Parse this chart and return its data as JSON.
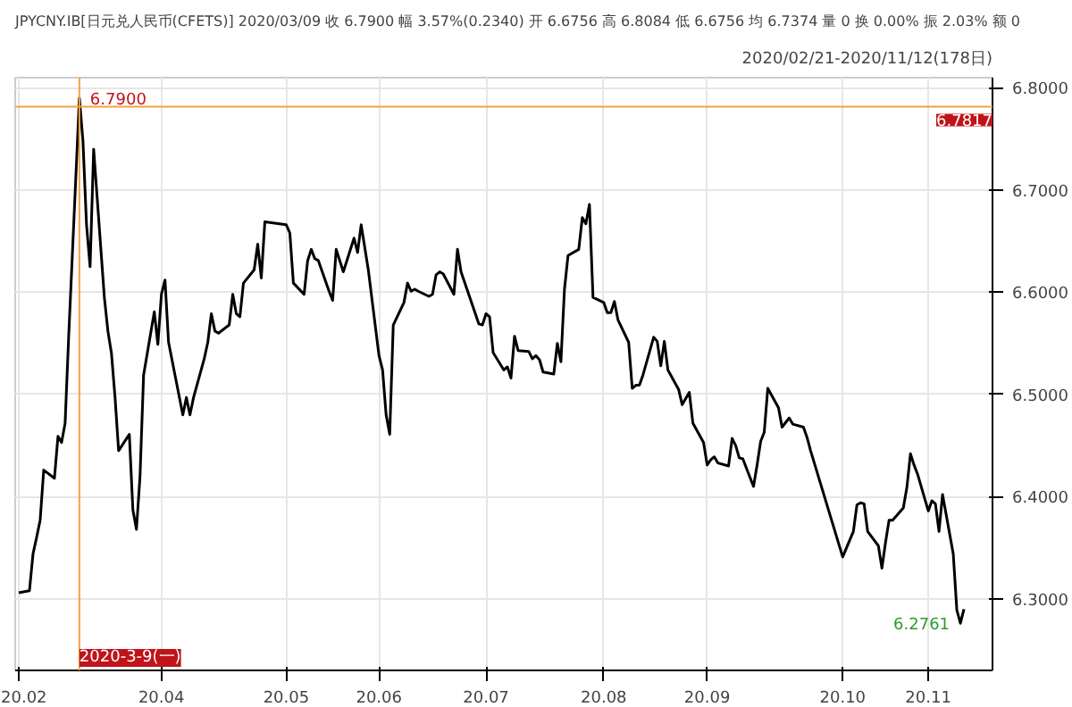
{
  "chart_data": {
    "type": "line",
    "title": "JPYCNY.IB[日元兑人民币(CFETS)]  2020/03/09  收 6.7900  幅 3.57%(0.2340)  开 6.6756  高 6.8084  低 6.6756  均 6.7374  量 0  换 0.00%  振 2.03%  额 0",
    "subtitle": "2020/02/21-2020/11/12(178日)",
    "x": [
      "2020-02-21",
      "2020-02-24",
      "2020-02-25",
      "2020-02-26",
      "2020-02-27",
      "2020-02-28",
      "2020-03-02",
      "2020-03-03",
      "2020-03-04",
      "2020-03-05",
      "2020-03-06",
      "2020-03-09",
      "2020-03-10",
      "2020-03-11",
      "2020-03-12",
      "2020-03-13",
      "2020-03-16",
      "2020-03-17",
      "2020-03-18",
      "2020-03-19",
      "2020-03-20",
      "2020-03-23",
      "2020-03-24",
      "2020-03-25",
      "2020-03-26",
      "2020-03-27",
      "2020-03-30",
      "2020-03-31",
      "2020-04-01",
      "2020-04-02",
      "2020-04-03",
      "2020-04-07",
      "2020-04-08",
      "2020-04-09",
      "2020-04-10",
      "2020-04-13",
      "2020-04-14",
      "2020-04-15",
      "2020-04-16",
      "2020-04-17",
      "2020-04-20",
      "2020-04-21",
      "2020-04-22",
      "2020-04-23",
      "2020-04-24",
      "2020-04-27",
      "2020-04-28",
      "2020-04-29",
      "2020-04-30",
      "2020-05-06",
      "2020-05-07",
      "2020-05-08",
      "2020-05-11",
      "2020-05-12",
      "2020-05-13",
      "2020-05-14",
      "2020-05-15",
      "2020-05-18",
      "2020-05-19",
      "2020-05-20",
      "2020-05-21",
      "2020-05-22",
      "2020-05-25",
      "2020-05-26",
      "2020-05-27",
      "2020-05-29",
      "2020-06-01",
      "2020-06-02",
      "2020-06-03",
      "2020-06-04",
      "2020-06-05",
      "2020-06-08",
      "2020-06-09",
      "2020-06-10",
      "2020-06-11",
      "2020-06-12",
      "2020-06-15",
      "2020-06-16",
      "2020-06-17",
      "2020-06-18",
      "2020-06-19",
      "2020-06-22",
      "2020-06-23",
      "2020-06-24",
      "2020-06-29",
      "2020-06-30",
      "2020-07-01",
      "2020-07-02",
      "2020-07-03",
      "2020-07-06",
      "2020-07-07",
      "2020-07-08",
      "2020-07-09",
      "2020-07-10",
      "2020-07-13",
      "2020-07-14",
      "2020-07-15",
      "2020-07-16",
      "2020-07-17",
      "2020-07-20",
      "2020-07-21",
      "2020-07-22",
      "2020-07-23",
      "2020-07-24",
      "2020-07-27",
      "2020-07-28",
      "2020-07-29",
      "2020-07-30",
      "2020-07-31",
      "2020-08-03",
      "2020-08-04",
      "2020-08-05",
      "2020-08-06",
      "2020-08-07",
      "2020-08-10",
      "2020-08-11",
      "2020-08-12",
      "2020-08-13",
      "2020-08-14",
      "2020-08-17",
      "2020-08-18",
      "2020-08-19",
      "2020-08-20",
      "2020-08-21",
      "2020-08-24",
      "2020-08-25",
      "2020-08-27",
      "2020-08-28",
      "2020-08-31",
      "2020-09-01",
      "2020-09-02",
      "2020-09-03",
      "2020-09-04",
      "2020-09-07",
      "2020-09-08",
      "2020-09-09",
      "2020-09-10",
      "2020-09-11",
      "2020-09-14",
      "2020-09-15",
      "2020-09-16",
      "2020-09-17",
      "2020-09-18",
      "2020-09-21",
      "2020-09-22",
      "2020-09-24",
      "2020-09-25",
      "2020-09-28",
      "2020-09-29",
      "2020-09-30",
      "2020-10-09",
      "2020-10-12",
      "2020-10-13",
      "2020-10-14",
      "2020-10-15",
      "2020-10-16",
      "2020-10-19",
      "2020-10-20",
      "2020-10-21",
      "2020-10-22",
      "2020-10-23",
      "2020-10-26",
      "2020-10-27",
      "2020-10-28",
      "2020-10-29",
      "2020-10-30",
      "2020-11-02",
      "2020-11-03",
      "2020-11-04",
      "2020-11-05",
      "2020-11-06",
      "2020-11-09",
      "2020-11-10",
      "2020-11-11",
      "2020-11-12"
    ],
    "series": [
      {
        "color": "#000000",
        "values": [
          6.306,
          6.308,
          6.344,
          6.36,
          6.377,
          6.426,
          6.418,
          6.459,
          6.453,
          6.472,
          6.557,
          6.79,
          6.748,
          6.666,
          6.625,
          6.74,
          6.595,
          6.562,
          6.54,
          6.497,
          6.445,
          6.461,
          6.387,
          6.368,
          6.42,
          6.519,
          6.581,
          6.549,
          6.598,
          6.612,
          6.551,
          6.48,
          6.497,
          6.48,
          6.497,
          6.535,
          6.551,
          6.579,
          6.562,
          6.56,
          6.568,
          6.598,
          6.579,
          6.576,
          6.609,
          6.622,
          6.647,
          6.614,
          6.669,
          6.666,
          6.658,
          6.609,
          6.598,
          6.631,
          6.642,
          6.633,
          6.631,
          6.601,
          6.592,
          6.642,
          6.631,
          6.62,
          6.653,
          6.639,
          6.666,
          6.622,
          6.538,
          6.524,
          6.48,
          6.461,
          6.568,
          6.59,
          6.609,
          6.601,
          6.603,
          6.601,
          6.596,
          6.598,
          6.617,
          6.62,
          6.618,
          6.598,
          6.642,
          6.62,
          6.569,
          6.568,
          6.579,
          6.576,
          6.541,
          6.524,
          6.527,
          6.516,
          6.557,
          6.543,
          6.542,
          6.535,
          6.538,
          6.534,
          6.522,
          6.52,
          6.55,
          6.532,
          6.603,
          6.636,
          6.642,
          6.673,
          6.667,
          6.686,
          6.595,
          6.59,
          6.58,
          6.58,
          6.591,
          6.573,
          6.551,
          6.506,
          6.509,
          6.509,
          6.519,
          6.556,
          6.552,
          6.528,
          6.552,
          6.524,
          6.505,
          6.49,
          6.502,
          6.472,
          6.453,
          6.431,
          6.436,
          6.439,
          6.433,
          6.43,
          6.457,
          6.45,
          6.438,
          6.437,
          6.41,
          6.431,
          6.454,
          6.463,
          6.506,
          6.487,
          6.468,
          6.477,
          6.471,
          6.468,
          6.458,
          6.445,
          6.341,
          6.366,
          6.392,
          6.394,
          6.393,
          6.366,
          6.352,
          6.33,
          6.355,
          6.377,
          6.377,
          6.389,
          6.409,
          6.442,
          6.431,
          6.422,
          6.386,
          6.396,
          6.393,
          6.366,
          6.402,
          6.344,
          6.289,
          6.2761,
          6.29
        ]
      }
    ],
    "xlim": [
      "2020-02-20",
      "2020-11-20"
    ],
    "ylim": [
      6.23,
      6.81
    ],
    "xticks": [
      {
        "value": "2020-02-21",
        "label": "20.02"
      },
      {
        "value": "2020-04-01",
        "label": "20.04"
      },
      {
        "value": "2020-05-06",
        "label": "20.05"
      },
      {
        "value": "2020-06-01",
        "label": "20.06"
      },
      {
        "value": "2020-07-01",
        "label": "20.07"
      },
      {
        "value": "2020-08-03",
        "label": "20.08"
      },
      {
        "value": "2020-09-01",
        "label": "20.09"
      },
      {
        "value": "2020-10-09",
        "label": "20.10"
      },
      {
        "value": "2020-11-02",
        "label": "20.11"
      }
    ],
    "yticks": [
      {
        "value": 6.3,
        "label": "6.3000"
      },
      {
        "value": 6.4,
        "label": "6.4000"
      },
      {
        "value": 6.5,
        "label": "6.5000"
      },
      {
        "value": 6.6,
        "label": "6.6000"
      },
      {
        "value": 6.7,
        "label": "6.7000"
      },
      {
        "value": 6.8,
        "label": "6.8000"
      }
    ],
    "grid": true,
    "ref_lines": [
      {
        "axis": "x",
        "value": "2020-03-09",
        "label": "2020-3-9(一)",
        "color": "#f5a142"
      },
      {
        "axis": "y",
        "value": 6.7817,
        "label": "6.7817",
        "color": "#f5a142"
      }
    ],
    "annotations": [
      {
        "text": "6.7900",
        "x": "2020-03-09",
        "y": 6.79
      },
      {
        "text": "6.2761",
        "x": "2020-11-11",
        "y": 6.2761
      }
    ]
  }
}
